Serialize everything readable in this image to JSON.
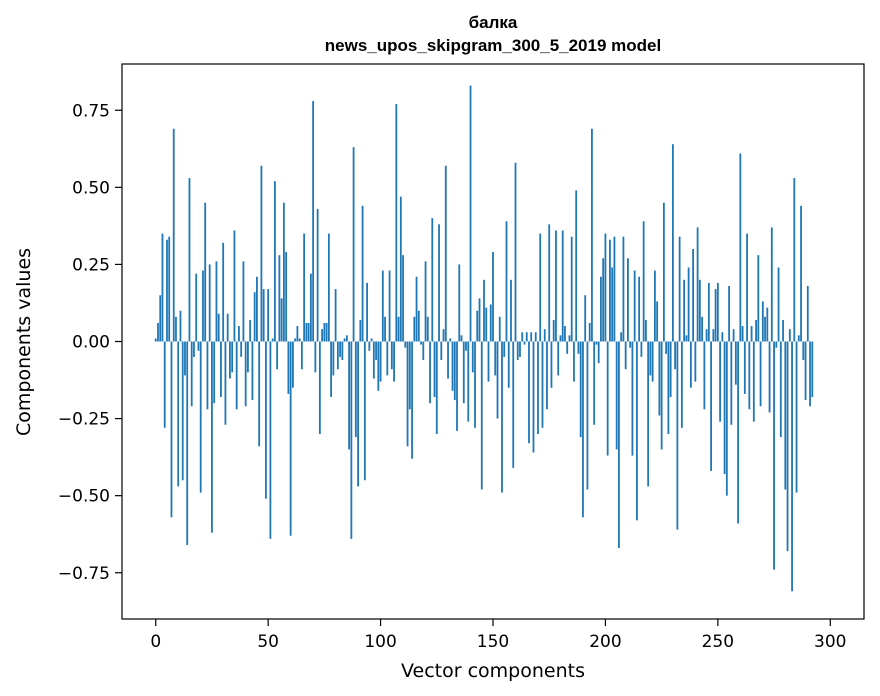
{
  "chart_data": {
    "type": "bar",
    "title": "балка",
    "subtitle": "news_upos_skipgram_300_5_2019 model",
    "xlabel": "Vector components",
    "ylabel": "Components values",
    "xlim": [
      -15,
      315
    ],
    "ylim": [
      -0.9,
      0.9
    ],
    "xticks": [
      0,
      50,
      100,
      150,
      200,
      250,
      300
    ],
    "yticks": [
      -0.75,
      -0.5,
      -0.25,
      0.0,
      0.25,
      0.5,
      0.75
    ],
    "xtick_labels": [
      "0",
      "50",
      "100",
      "150",
      "200",
      "250",
      "300"
    ],
    "ytick_labels": [
      "−0.75",
      "−0.50",
      "−0.25",
      "0.00",
      "0.25",
      "0.50",
      "0.75"
    ],
    "grid": false,
    "bar_color": "#1f77b4",
    "series": [
      {
        "name": "балка",
        "values": [
          0.01,
          0.06,
          0.15,
          0.35,
          -0.28,
          0.33,
          0.34,
          -0.57,
          0.69,
          0.08,
          -0.47,
          0.1,
          -0.45,
          -0.11,
          -0.66,
          0.53,
          -0.21,
          -0.05,
          0.22,
          -0.03,
          -0.49,
          0.23,
          0.45,
          -0.22,
          0.25,
          -0.62,
          -0.2,
          0.26,
          0.09,
          -0.18,
          0.32,
          -0.27,
          0.09,
          -0.12,
          -0.1,
          0.36,
          -0.22,
          0.05,
          -0.05,
          0.26,
          -0.21,
          -0.1,
          0.07,
          -0.19,
          0.16,
          0.21,
          -0.34,
          0.57,
          0.17,
          -0.51,
          0.17,
          -0.64,
          0.01,
          0.52,
          -0.09,
          0.28,
          0.14,
          0.45,
          0.29,
          -0.17,
          -0.63,
          -0.15,
          0.01,
          0.05,
          0.01,
          -0.09,
          0.35,
          0.06,
          0.06,
          0.22,
          0.78,
          -0.1,
          0.43,
          -0.3,
          0.04,
          0.06,
          0.06,
          0.35,
          -0.18,
          -0.11,
          0.17,
          -0.09,
          -0.05,
          -0.06,
          0.01,
          0.02,
          -0.35,
          -0.64,
          0.63,
          -0.31,
          -0.47,
          0.07,
          0.44,
          -0.45,
          0.19,
          -0.03,
          0.01,
          -0.12,
          -0.06,
          -0.16,
          -0.13,
          0.23,
          0.08,
          -0.11,
          0.23,
          -0.09,
          -0.13,
          0.77,
          0.08,
          0.47,
          0.28,
          -0.02,
          -0.34,
          -0.22,
          -0.38,
          0.08,
          0.21,
          0.1,
          -0.01,
          -0.06,
          0.26,
          0.08,
          -0.2,
          0.4,
          -0.18,
          -0.3,
          0.38,
          -0.06,
          0.04,
          0.57,
          -0.12,
          0.01,
          -0.16,
          -0.19,
          -0.29,
          0.25,
          0.02,
          -0.2,
          -0.03,
          -0.26,
          0.83,
          -0.1,
          -0.28,
          0.1,
          0.14,
          -0.48,
          0.2,
          0.11,
          -0.13,
          0.12,
          0.29,
          -0.11,
          -0.25,
          0.08,
          -0.49,
          -0.05,
          0.39,
          -0.15,
          0.2,
          -0.41,
          0.58,
          -0.06,
          -0.05,
          0.03,
          -0.01,
          0.03,
          -0.33,
          0.03,
          -0.36,
          0.03,
          -0.3,
          0.35,
          -0.28,
          0.04,
          -0.22,
          0.38,
          -0.15,
          0.07,
          0.36,
          -0.11,
          0.02,
          0.36,
          0.05,
          -0.04,
          0.02,
          0.34,
          -0.13,
          0.49,
          -0.04,
          -0.31,
          -0.57,
          0.15,
          -0.48,
          0.06,
          0.69,
          -0.27,
          -0.01,
          -0.07,
          0.21,
          0.27,
          0.35,
          -0.37,
          0.33,
          0.24,
          0.34,
          -0.35,
          -0.67,
          0.03,
          0.34,
          -0.09,
          0.27,
          -0.02,
          -0.37,
          0.23,
          -0.58,
          0.21,
          -0.05,
          0.39,
          0.07,
          -0.47,
          -0.11,
          -0.13,
          0.23,
          0.13,
          -0.24,
          -0.35,
          0.45,
          -0.04,
          -0.3,
          -0.18,
          0.64,
          -0.09,
          -0.61,
          0.34,
          -0.28,
          0.2,
          0.02,
          0.24,
          -0.15,
          0.3,
          -0.13,
          0.37,
          0.2,
          0.08,
          -0.22,
          0.04,
          0.19,
          -0.42,
          0.04,
          0.17,
          0.19,
          -0.26,
          0.03,
          -0.43,
          -0.5,
          0.18,
          -0.27,
          0.04,
          -0.14,
          -0.59,
          0.61,
          0.05,
          -0.17,
          0.35,
          -0.22,
          0.05,
          -0.26,
          0.07,
          0.28,
          -0.21,
          0.13,
          0.08,
          0.11,
          -0.23,
          0.37,
          -0.74,
          -0.02,
          0.24,
          -0.31,
          0.07,
          -0.48,
          -0.68,
          0.04,
          -0.81,
          0.53,
          -0.49,
          0.02,
          0.44,
          -0.06,
          -0.19,
          0.18,
          -0.21,
          -0.18
        ]
      }
    ]
  }
}
